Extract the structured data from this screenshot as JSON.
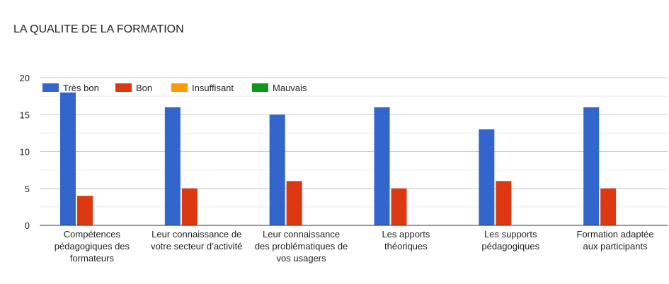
{
  "chart_data": {
    "type": "bar",
    "title": "LA QUALITE DE LA FORMATION",
    "categories": [
      [
        "Compétences",
        "pédagogiques des",
        "formateurs"
      ],
      [
        "Leur connaissance de",
        "votre secteur d’activité"
      ],
      [
        "Leur connaissance",
        "des problématiques de",
        "vos usagers"
      ],
      [
        "Les apports",
        "théoriques"
      ],
      [
        "Les supports",
        "pédagogiques"
      ],
      [
        "Formation adaptée",
        "aux participants"
      ]
    ],
    "series": [
      {
        "name": "Très bon",
        "color": "#3366cc",
        "values": [
          18,
          16,
          15,
          16,
          13,
          16
        ]
      },
      {
        "name": "Bon",
        "color": "#dc3912",
        "values": [
          4,
          5,
          6,
          5,
          6,
          5
        ]
      },
      {
        "name": "Insuffisant",
        "color": "#ff9900",
        "values": [
          0,
          0,
          0,
          0,
          0,
          0
        ]
      },
      {
        "name": "Mauvais",
        "color": "#109618",
        "values": [
          0,
          0,
          0,
          0,
          0,
          0
        ]
      }
    ],
    "yticks": [
      0,
      5,
      10,
      15,
      20
    ],
    "ylim": [
      0,
      20
    ],
    "grid": true,
    "legend": "top-left"
  }
}
